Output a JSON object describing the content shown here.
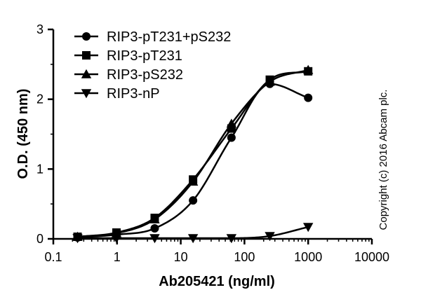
{
  "chart_data": {
    "type": "line",
    "xlabel": "Ab205421 (ng/ml)",
    "ylabel": "O.D. (450 nm)",
    "x_scale": "log",
    "xlim": [
      0.1,
      10000
    ],
    "ylim": [
      0,
      3
    ],
    "x_ticks": [
      "0.1",
      "1",
      "10",
      "100",
      "1000",
      "10000"
    ],
    "y_ticks": [
      "0",
      "1",
      "2",
      "3"
    ],
    "grid": false,
    "legend_position": "top-left",
    "x": [
      0.24,
      0.98,
      3.9,
      15.6,
      62.5,
      250,
      1000
    ],
    "series": [
      {
        "name": "RIP3-pT231+pS232",
        "marker": "circle",
        "values": [
          0.02,
          0.06,
          0.15,
          0.55,
          1.45,
          2.22,
          2.02
        ]
      },
      {
        "name": "RIP3-pT231",
        "marker": "square",
        "values": [
          0.03,
          0.09,
          0.3,
          0.85,
          1.58,
          2.28,
          2.4
        ]
      },
      {
        "name": "RIP3-pS232",
        "marker": "triangle-up",
        "values": [
          0.03,
          0.08,
          0.28,
          0.82,
          1.65,
          2.25,
          2.42
        ]
      },
      {
        "name": "RIP3-nP",
        "marker": "triangle-down",
        "values": [
          0.01,
          0.01,
          0.01,
          0.01,
          0.01,
          0.04,
          0.17
        ]
      }
    ],
    "annotation": "Copyright (c) 2016 Abcam plc."
  }
}
